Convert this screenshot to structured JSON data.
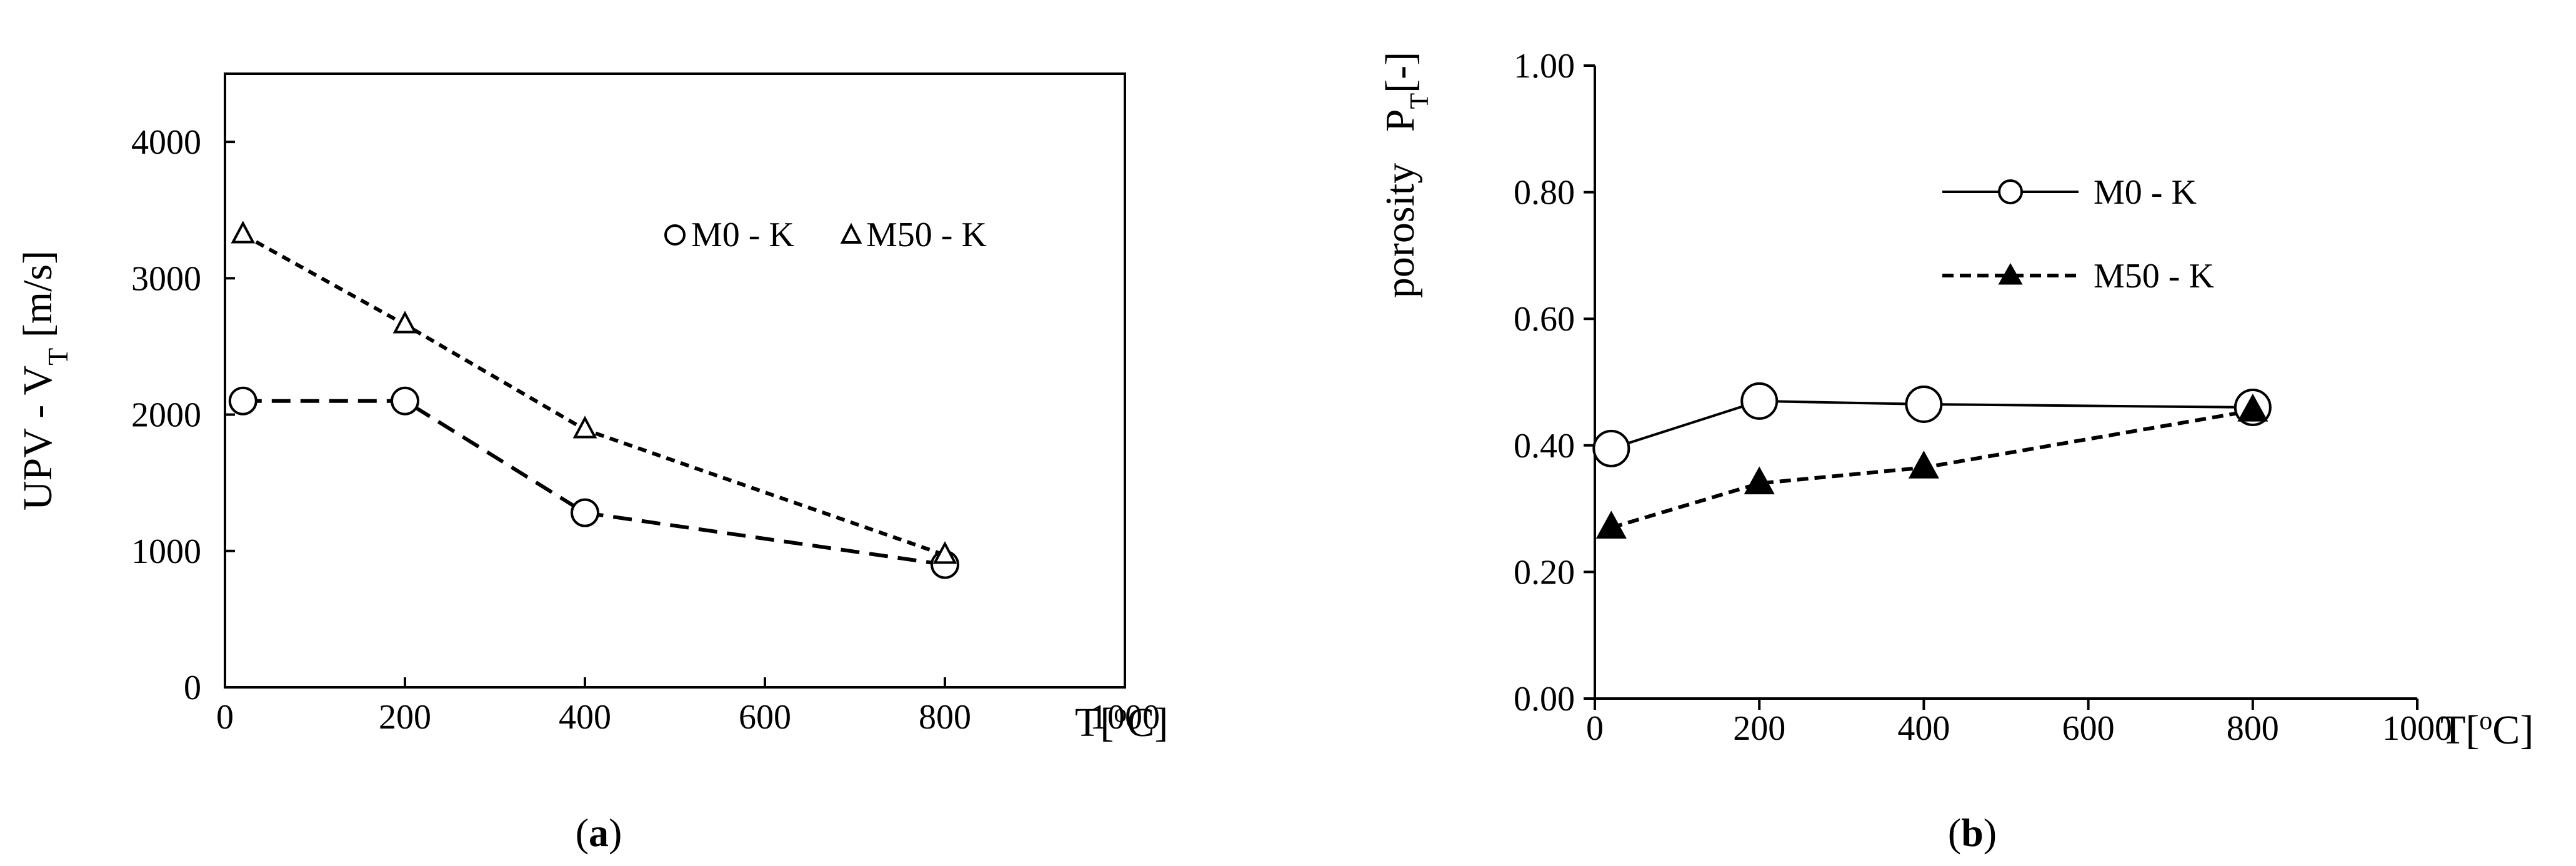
{
  "chart_data": [
    {
      "type": "line",
      "panel_label": "a",
      "title": "",
      "xlabel": "T[°C]",
      "xlabel_parts": [
        "T[",
        "o",
        "C]"
      ],
      "ylabel": "UPV - V_T [m/s]",
      "ylabel_parts": [
        "UPV - V",
        "T",
        " [m/s]"
      ],
      "xlim": [
        0,
        1000
      ],
      "ylim": [
        0,
        4500
      ],
      "xticks": [
        0,
        200,
        400,
        600,
        800,
        1000
      ],
      "xtick_labels": [
        "0",
        "200",
        "400",
        "600",
        "800",
        "1000"
      ],
      "yticks": [
        0,
        1000,
        2000,
        3000,
        4000
      ],
      "ytick_labels": [
        "0",
        "1000",
        "2000",
        "3000",
        "4000"
      ],
      "grid": false,
      "legend_placement": "top-right, horizontal",
      "series": [
        {
          "name": "M0 - K",
          "marker": "open-circle",
          "line": "dashed",
          "x": [
            20,
            200,
            400,
            800
          ],
          "y": [
            2100,
            2100,
            1280,
            900
          ]
        },
        {
          "name": "M50 - K",
          "marker": "open-triangle",
          "line": "dotted",
          "x": [
            20,
            200,
            400,
            800
          ],
          "y": [
            3320,
            2660,
            1890,
            970
          ]
        }
      ]
    },
    {
      "type": "line",
      "panel_label": "b",
      "title": "",
      "xlabel": "T[°C]",
      "xlabel_parts": [
        "T[",
        "o",
        "C]"
      ],
      "ylabel": "porosity P_T[-]",
      "ylabel_parts": [
        "porosity   P",
        "T",
        "[-]"
      ],
      "xlim": [
        0,
        1000
      ],
      "ylim": [
        0,
        1.0
      ],
      "xticks": [
        0,
        200,
        400,
        600,
        800,
        1000
      ],
      "xtick_labels": [
        "0",
        "200",
        "400",
        "600",
        "800",
        "1000"
      ],
      "yticks": [
        0,
        0.2,
        0.4,
        0.6,
        0.8,
        1.0
      ],
      "ytick_labels": [
        "0.00",
        "0.20",
        "0.40",
        "0.60",
        "0.80",
        "1.00"
      ],
      "grid": false,
      "legend_placement": "top-center, vertical",
      "series": [
        {
          "name": "M0 - K",
          "marker": "open-circle",
          "line": "solid",
          "x": [
            20,
            200,
            400,
            800
          ],
          "y": [
            0.395,
            0.47,
            0.465,
            0.46
          ]
        },
        {
          "name": "M50 - K",
          "marker": "filled-triangle",
          "line": "dashed",
          "x": [
            20,
            200,
            400,
            800
          ],
          "y": [
            0.27,
            0.34,
            0.365,
            0.455
          ]
        }
      ]
    }
  ]
}
